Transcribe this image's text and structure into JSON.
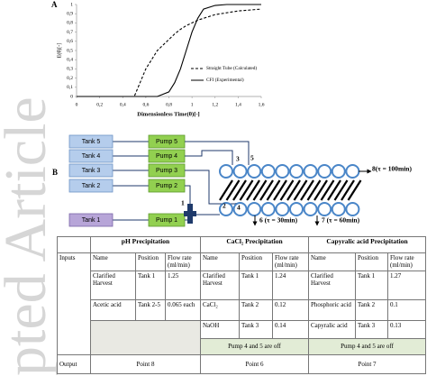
{
  "watermark": "pted Article",
  "chart_data": {
    "type": "line",
    "label": "A",
    "xlabel": "Dimensionless Time(θ)[-]",
    "ylabel": "E(θ)[-]",
    "x": [
      0,
      0.1,
      0.2,
      0.3,
      0.4,
      0.5,
      0.6,
      0.7,
      0.8,
      0.85,
      0.9,
      0.95,
      1.0,
      1.05,
      1.1,
      1.2,
      1.3,
      1.4,
      1.5,
      1.6
    ],
    "series": [
      {
        "name": "Straight Tube (Calculated)",
        "color": "#000000",
        "dash": true,
        "values": [
          0,
          0,
          0,
          0,
          0,
          0,
          0.3,
          0.5,
          0.62,
          0.68,
          0.73,
          0.77,
          0.8,
          0.83,
          0.85,
          0.89,
          0.91,
          0.93,
          0.94,
          0.95
        ]
      },
      {
        "name": "CFI (Experimental)",
        "color": "#000000",
        "dash": false,
        "values": [
          0,
          0,
          0,
          0,
          0,
          0,
          0,
          0,
          0.05,
          0.15,
          0.3,
          0.5,
          0.7,
          0.85,
          0.95,
          0.99,
          1,
          1,
          1,
          1
        ]
      }
    ],
    "xlim": [
      0,
      1.6
    ],
    "ylim": [
      0,
      1
    ],
    "xticks": [
      0,
      {
        "value": 0.2,
        "label": "0,2"
      },
      {
        "value": 0.4,
        "label": "0,4"
      },
      {
        "value": 0.6,
        "label": "0,6"
      },
      {
        "value": 0.8,
        "label": "0,8"
      },
      1,
      {
        "value": 1.2,
        "label": "1,2"
      },
      {
        "value": 1.4,
        "label": "1,4"
      },
      {
        "value": 1.6,
        "label": "1,6"
      }
    ],
    "yticks": [
      0,
      {
        "value": 0.1,
        "label": "0,1"
      },
      {
        "value": 0.2,
        "label": "0,2"
      },
      {
        "value": 0.3,
        "label": "0,3"
      },
      {
        "value": 0.4,
        "label": "0,4"
      },
      {
        "value": 0.5,
        "label": "0,5"
      },
      {
        "value": 0.6,
        "label": "0,6"
      },
      {
        "value": 0.7,
        "label": "0,7"
      },
      {
        "value": 0.8,
        "label": "0,8"
      },
      {
        "value": 0.9,
        "label": "0,9"
      },
      1
    ],
    "grid": false,
    "legend": "lower right"
  },
  "diagram": {
    "label": "B",
    "tanks": [
      "Tank 5",
      "Tank 4",
      "Tank 3",
      "Tank 2",
      "Tank 1"
    ],
    "pumps": [
      "Pump 5",
      "Pump 4",
      "Pump 3",
      "Pump 2",
      "Pump 1"
    ],
    "points": [
      "1",
      "2",
      "3",
      "4",
      "5"
    ],
    "outlets": [
      "6 (τ = 30min)",
      "7 (τ = 60min)",
      "8(τ = 100min)"
    ]
  },
  "table": {
    "inputs_label": "Inputs",
    "output_label": "Output",
    "groups": [
      {
        "title": "pH Precipitation",
        "columns": [
          "Name",
          "Position",
          "Flow rate (ml/min)"
        ],
        "rows": [
          [
            "Clarified Harvest",
            "Tank 1",
            "1.25"
          ],
          [
            "Acetic acid",
            "Tank 2-5",
            "0.065 each"
          ]
        ],
        "output": "Point 8"
      },
      {
        "title": "CaCl₂ Precipitation",
        "columns": [
          "Name",
          "Position",
          "Flow rate (ml/min)"
        ],
        "rows": [
          [
            "Clarified Harvest",
            "Tank 1",
            "1.24"
          ],
          [
            "CaCl₂",
            "Tank 2",
            "0.12"
          ],
          [
            "NaOH",
            "Tank 3",
            "0.14"
          ]
        ],
        "note": "Pump 4 and 5 are off",
        "output": "Point 6"
      },
      {
        "title": "Capyralic acid Precipitation",
        "columns": [
          "Name",
          "Position",
          "Flow rate (ml/min)"
        ],
        "rows": [
          [
            "Clarified Harvest",
            "Tank 1",
            "1.27"
          ],
          [
            "Phosphoric acid",
            "Tank 2",
            "0.1"
          ],
          [
            "Capyralic acid",
            "Tank 3",
            "0.13"
          ]
        ],
        "note": "Pump 4 and 5 are off",
        "output": "Point 7"
      }
    ]
  }
}
